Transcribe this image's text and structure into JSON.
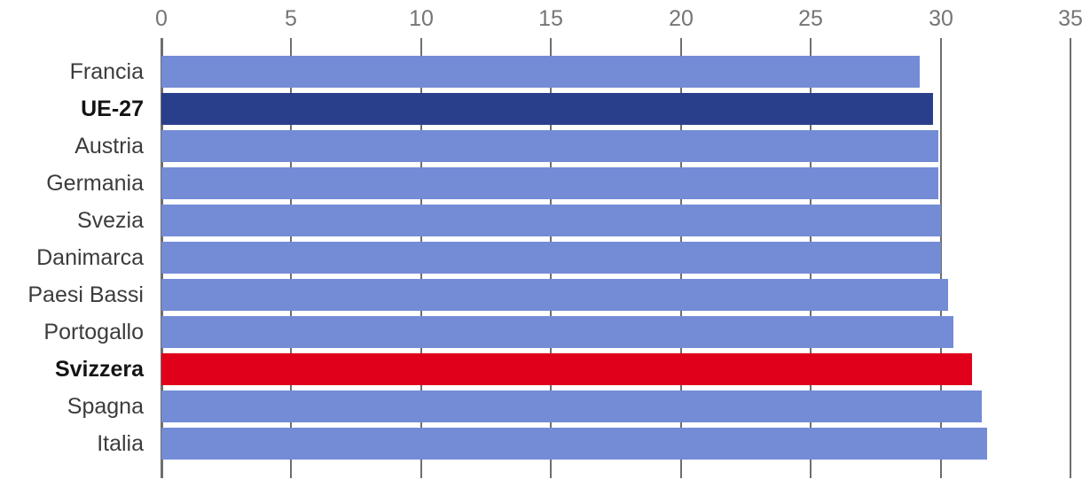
{
  "chart_data": {
    "type": "bar",
    "orientation": "horizontal",
    "categories": [
      "Francia",
      "UE-27",
      "Austria",
      "Germania",
      "Svezia",
      "Danimarca",
      "Paesi Bassi",
      "Portogallo",
      "Svizzera",
      "Spagna",
      "Italia"
    ],
    "values": [
      29.2,
      29.7,
      29.9,
      29.9,
      30.0,
      30.0,
      30.3,
      30.5,
      31.2,
      31.6,
      31.8
    ],
    "bar_color_roles": [
      "default",
      "navy",
      "default",
      "default",
      "default",
      "default",
      "default",
      "default",
      "red",
      "default",
      "default"
    ],
    "bold_labels": [
      "UE-27",
      "Svizzera"
    ],
    "xlim": [
      0,
      35
    ],
    "xticks": [
      0,
      5,
      10,
      15,
      20,
      25,
      30,
      35
    ],
    "grid": true,
    "legend_position": "none",
    "axis_position": "top"
  },
  "colors": {
    "bar_roles": {
      "default": "#748bd6",
      "navy": "#2a3f8c",
      "red": "#e0001b"
    },
    "grid": "#6e6e6e",
    "tick_label": "#757575",
    "label": "#3c3c3c",
    "label_bold": "#141414",
    "background": "#ffffff"
  }
}
